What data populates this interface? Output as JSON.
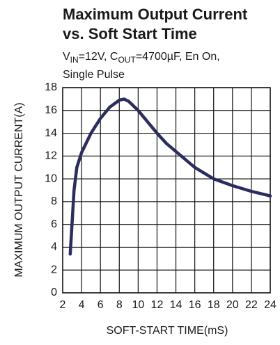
{
  "chart_data": {
    "type": "line",
    "title_lines": [
      "Maximum Output Current",
      "vs. Soft Start Time"
    ],
    "subtitle_parts": [
      "V",
      "IN",
      "=12V, C",
      "OUT",
      "=4700µF, En On,"
    ],
    "subtitle_line2": "Single Pulse",
    "xlabel": "SOFT-START TIME(mS)",
    "ylabel": "MAXIMUM OUTPUT CURRENT(A)",
    "x": [
      2.8,
      3.2,
      3.5,
      4,
      5,
      6,
      7,
      8,
      8.5,
      9,
      10,
      11,
      12,
      13,
      14,
      16,
      18,
      20,
      22,
      24
    ],
    "values": [
      3.4,
      9,
      11,
      12.3,
      14,
      15.3,
      16.3,
      16.9,
      17,
      16.8,
      16,
      15,
      14,
      13.1,
      12.4,
      11,
      10,
      9.4,
      8.9,
      8.5
    ],
    "color": "#2b2d5e",
    "xlim": [
      2,
      24
    ],
    "xticks": [
      2,
      4,
      6,
      8,
      10,
      12,
      14,
      16,
      18,
      20,
      22,
      24
    ],
    "ylim": [
      0,
      18
    ],
    "yticks": [
      0,
      2,
      4,
      6,
      8,
      10,
      12,
      14,
      16,
      18
    ],
    "grid": true
  }
}
